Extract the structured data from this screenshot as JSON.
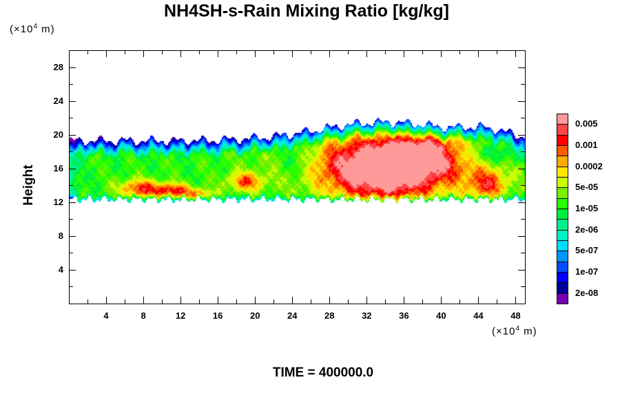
{
  "chart_data": {
    "type": "heatmap",
    "title": "NH4SH-s-Rain Mixing Ratio [kg/kg]",
    "ylabel": "Height",
    "xunit_prefix": "(×10",
    "xunit_exp": "4",
    "xunit_suffix": " m)",
    "yunit_prefix": "(×10",
    "yunit_exp": "4",
    "yunit_suffix": " m)",
    "xlim": [
      0,
      49
    ],
    "ylim": [
      0,
      30
    ],
    "xticks": [
      "4",
      "8",
      "12",
      "16",
      "20",
      "24",
      "28",
      "32",
      "36",
      "40",
      "44",
      "48"
    ],
    "xtick_values": [
      4,
      8,
      12,
      16,
      20,
      24,
      28,
      32,
      36,
      40,
      44,
      48
    ],
    "yticks": [
      "4",
      "8",
      "12",
      "16",
      "20",
      "24",
      "28"
    ],
    "ytick_values": [
      4,
      8,
      12,
      16,
      20,
      24,
      28
    ],
    "minor_tick_step": 2,
    "footer": "TIME = 400000.0",
    "colorbar": {
      "colors_top_to_bottom": [
        "#ff9a9a",
        "#ff4646",
        "#ff0000",
        "#ff5a00",
        "#ffaa00",
        "#ffe600",
        "#c8ff00",
        "#78f000",
        "#28ff00",
        "#00f03c",
        "#00f08c",
        "#00f0c8",
        "#00dcff",
        "#0096ff",
        "#0050ff",
        "#0000ff",
        "#000096",
        "#7800b4"
      ],
      "labels_top_to_bottom": [
        "0.005",
        "0.001",
        "0.0002",
        "5e-05",
        "1e-05",
        "2e-06",
        "5e-07",
        "1e-07",
        "2e-08"
      ]
    },
    "field_description": {
      "cloud_layer_height_range": [
        12,
        21.5
      ],
      "max_region_x_range": [
        28,
        40
      ],
      "max_region_height_range": [
        13,
        18
      ],
      "max_level": "0.005"
    }
  }
}
